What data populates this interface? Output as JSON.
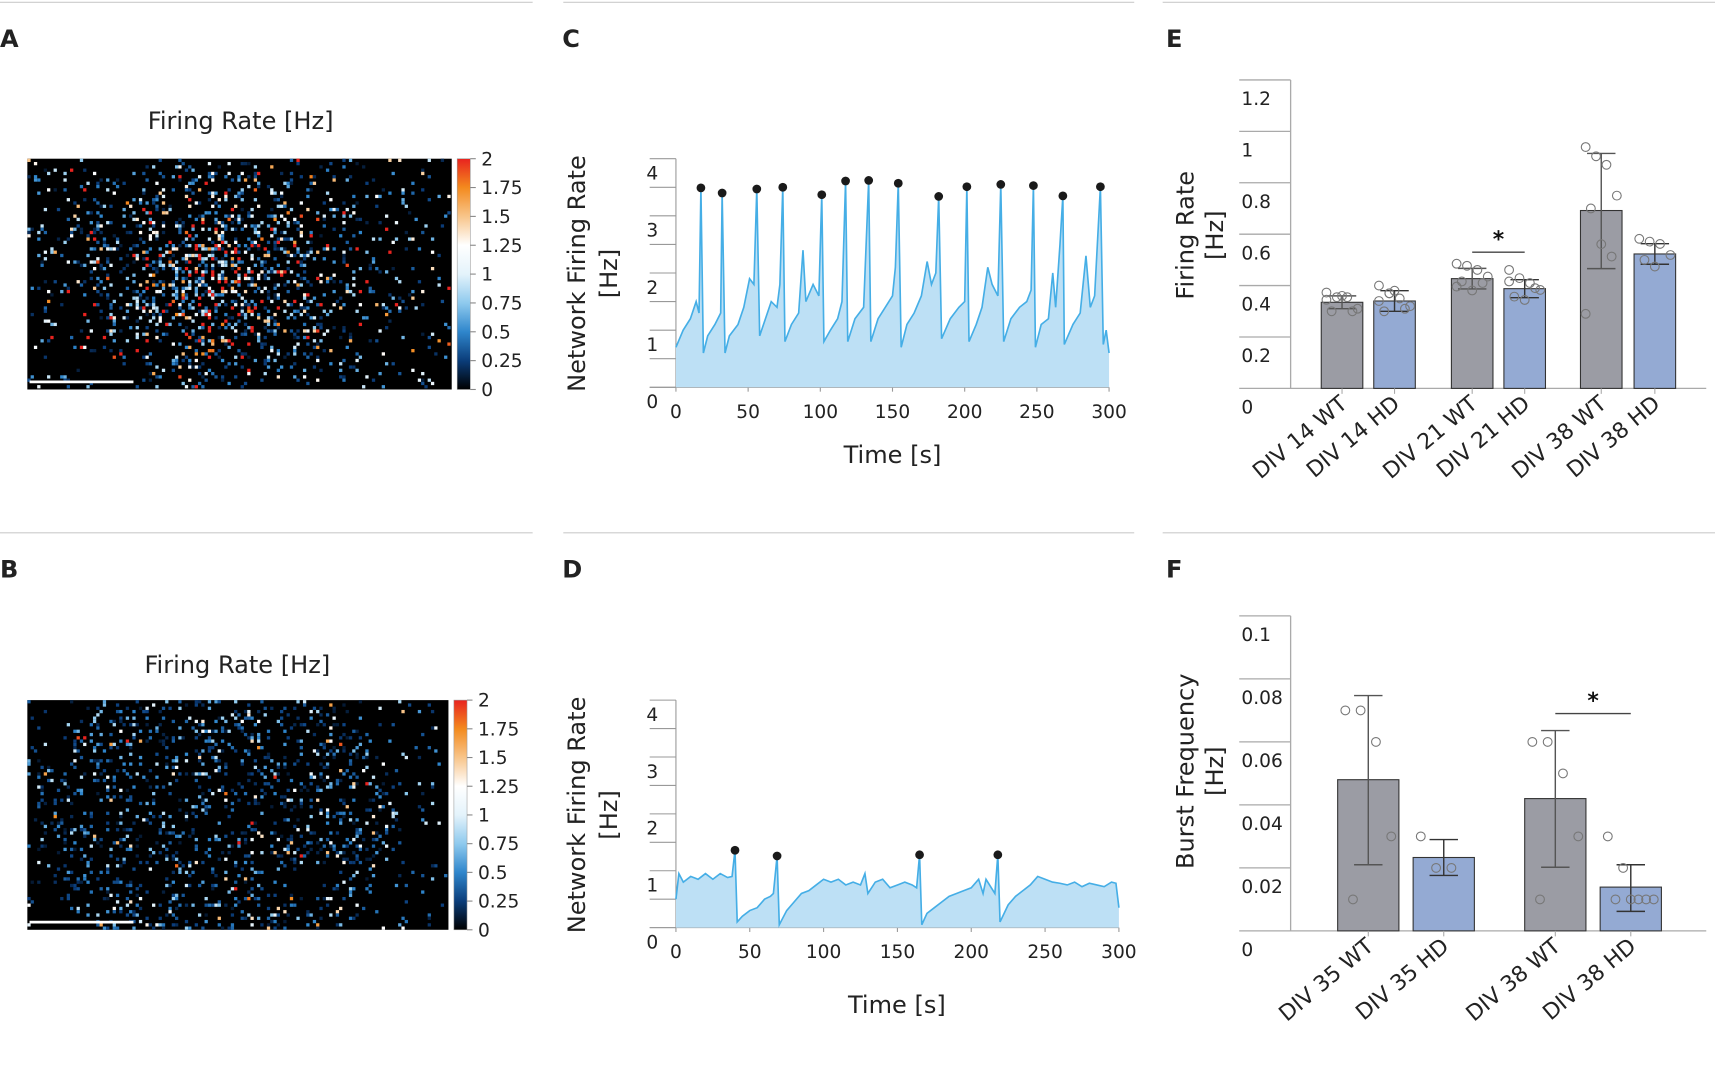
{
  "panel_labels": {
    "a": "A",
    "b": "B",
    "c": "C",
    "d": "D",
    "e": "E",
    "f": "F"
  },
  "colors": {
    "wt_bar": "#9b9ca4",
    "hd_bar": "#94aad3",
    "trace_line": "#45aee6",
    "trace_fill": "#bde0f5",
    "burst_marker": "#1a1a1a",
    "divider": "#cccccc"
  },
  "chart_data": [
    {
      "panel": "A",
      "type": "heatmap",
      "title": "Firing Rate [Hz]",
      "range": [
        0,
        2
      ],
      "colorbar_ticks": [
        "0",
        "0.25",
        "0.5",
        "0.75",
        "1",
        "1.25",
        "1.5",
        "1.75",
        "2"
      ],
      "colormap": [
        "#000000",
        "#0b3d7a",
        "#2f86cc",
        "#8fcaee",
        "#e4f3fb",
        "#ffffff",
        "#f8c58a",
        "#f38a1e",
        "#e8231f"
      ],
      "scale_bar": true
    },
    {
      "panel": "C",
      "type": "line",
      "xlabel": "Time [s]",
      "ylabel_lines": [
        "Network Firing Rate",
        "[Hz]"
      ],
      "xlim": [
        0,
        300
      ],
      "ylim": [
        0,
        4
      ],
      "xticks": [
        0,
        50,
        100,
        150,
        200,
        250,
        300
      ],
      "yticks": [
        0,
        1,
        2,
        3,
        4
      ],
      "minor_step": 0.5,
      "x": [
        0,
        5,
        10,
        14,
        16,
        17.3,
        19,
        22,
        27,
        31,
        32,
        34,
        37,
        43,
        47,
        51,
        54,
        56,
        58,
        62,
        66,
        70,
        72,
        74,
        75.5,
        80,
        85,
        88,
        90,
        95,
        99,
        101,
        102.5,
        107,
        112,
        115,
        117.5,
        119,
        124,
        130,
        133.5,
        135,
        140,
        145,
        150,
        152,
        154,
        156,
        160,
        165,
        170,
        174,
        177,
        180,
        182,
        184,
        190,
        196,
        200,
        201.5,
        203,
        208,
        212,
        216,
        219,
        223,
        225,
        227,
        232,
        238,
        243,
        246,
        247.6,
        249,
        253,
        258,
        261,
        263,
        266,
        268,
        269,
        275,
        280,
        284,
        287,
        290,
        294,
        296,
        298,
        300
      ],
      "y": [
        0.7,
        1.0,
        1.2,
        1.5,
        1.3,
        3.49,
        0.6,
        0.9,
        1.1,
        1.3,
        3.4,
        0.6,
        0.9,
        1.1,
        1.4,
        1.9,
        1.8,
        3.47,
        0.9,
        1.2,
        1.5,
        1.4,
        1.8,
        3.5,
        0.8,
        1.1,
        1.3,
        2.4,
        1.5,
        1.8,
        1.6,
        3.37,
        0.8,
        1.0,
        1.2,
        1.5,
        3.61,
        0.8,
        1.2,
        1.4,
        3.62,
        0.8,
        1.2,
        1.4,
        1.6,
        2.1,
        3.57,
        0.7,
        1.1,
        1.3,
        1.6,
        2.2,
        1.8,
        2.0,
        3.34,
        0.85,
        1.2,
        1.4,
        1.5,
        3.51,
        0.8,
        1.1,
        1.4,
        2.1,
        1.8,
        1.6,
        3.55,
        0.8,
        1.2,
        1.4,
        1.5,
        1.7,
        3.53,
        0.7,
        1.1,
        1.2,
        2.0,
        1.4,
        2.5,
        3.35,
        0.75,
        1.1,
        1.3,
        2.3,
        1.4,
        1.6,
        3.51,
        0.75,
        1.0,
        0.6
      ],
      "bursts": {
        "x": [
          17.3,
          32,
          56,
          74,
          101,
          117.5,
          133.5,
          154,
          182,
          201.5,
          225,
          247.6,
          268,
          294
        ],
        "y": [
          3.49,
          3.4,
          3.47,
          3.5,
          3.37,
          3.61,
          3.62,
          3.57,
          3.34,
          3.51,
          3.55,
          3.53,
          3.35,
          3.51
        ]
      }
    },
    {
      "panel": "E",
      "type": "bar",
      "ylabel_lines": [
        "Firing Rate",
        "[Hz]"
      ],
      "ylim": [
        0,
        1.2
      ],
      "yticks": [
        "0",
        "0.2",
        "0.4",
        "0.6",
        "0.8",
        "1",
        "1.2"
      ],
      "ytick_values": [
        0,
        0.2,
        0.4,
        0.6,
        0.8,
        1.0,
        1.2
      ],
      "categories": [
        "DIV 14 WT",
        "DIV 14 HD",
        "DIV 21 WT",
        "DIV 21 HD",
        "DIV 38 WT",
        "DIV 38 HD"
      ],
      "genotype": [
        "WT",
        "HD",
        "WT",
        "HD",
        "WT",
        "HD"
      ],
      "values": [
        0.335,
        0.34,
        0.427,
        0.388,
        0.692,
        0.523
      ],
      "errors": [
        [
          0.31,
          0.36
        ],
        [
          0.3,
          0.38
        ],
        [
          0.387,
          0.467
        ],
        [
          0.353,
          0.423
        ],
        [
          0.466,
          0.914
        ],
        [
          0.483,
          0.563
        ]
      ],
      "points": [
        [
          0.373,
          0.355,
          0.355,
          0.31,
          0.3,
          0.36,
          0.3,
          0.345
        ],
        [
          0.4,
          0.37,
          0.35,
          0.32,
          0.3,
          0.38,
          0.31,
          0.34,
          0.37
        ],
        [
          0.485,
          0.477,
          0.461,
          0.435,
          0.416,
          0.381,
          0.41,
          0.396
        ],
        [
          0.461,
          0.429,
          0.41,
          0.383,
          0.357,
          0.344,
          0.39,
          0.416
        ],
        [
          0.939,
          0.903,
          0.87,
          0.75,
          0.7,
          0.561,
          0.513,
          0.29
        ],
        [
          0.582,
          0.571,
          0.562,
          0.519,
          0.5,
          0.474
        ]
      ],
      "significance": [
        {
          "between": [
            2,
            3
          ],
          "label": "*",
          "level": 0.53
        }
      ]
    },
    {
      "panel": "B",
      "type": "heatmap",
      "title": "Firing Rate [Hz]",
      "range": [
        0,
        2
      ],
      "colorbar_ticks": [
        "0",
        "0.25",
        "0.5",
        "0.75",
        "1",
        "1.25",
        "1.5",
        "1.75",
        "2"
      ],
      "colormap": [
        "#000000",
        "#0b3d7a",
        "#2f86cc",
        "#8fcaee",
        "#e4f3fb",
        "#ffffff",
        "#f8c58a",
        "#f38a1e",
        "#e8231f"
      ],
      "scale_bar": true
    },
    {
      "panel": "D",
      "type": "line",
      "xlabel": "Time [s]",
      "ylabel_lines": [
        "Network Firing Rate",
        "[Hz]"
      ],
      "xlim": [
        0,
        300
      ],
      "ylim": [
        0,
        4
      ],
      "xticks": [
        0,
        50,
        100,
        150,
        200,
        250,
        300
      ],
      "yticks": [
        0,
        1,
        2,
        3,
        4
      ],
      "minor_step": 0.5,
      "x": [
        0,
        2,
        5,
        10,
        15,
        20,
        25,
        30,
        35,
        38,
        40,
        41.5,
        45,
        50,
        55,
        60,
        64,
        66,
        68.5,
        70,
        75,
        80,
        85,
        90,
        95,
        100,
        105,
        110,
        115,
        120,
        125,
        128,
        130,
        135,
        140,
        145,
        150,
        155,
        160,
        163,
        165,
        166.5,
        170,
        175,
        180,
        185,
        190,
        195,
        200,
        205,
        208,
        210,
        216,
        218,
        219.5,
        225,
        230,
        235,
        240,
        245,
        250,
        255,
        260,
        265,
        270,
        275,
        280,
        285,
        290,
        295,
        298,
        300
      ],
      "y": [
        0.5,
        0.95,
        0.8,
        0.9,
        0.85,
        0.95,
        0.85,
        0.95,
        0.88,
        0.9,
        1.36,
        0.1,
        0.2,
        0.3,
        0.35,
        0.5,
        0.55,
        0.6,
        1.26,
        0.05,
        0.3,
        0.45,
        0.6,
        0.65,
        0.75,
        0.85,
        0.8,
        0.85,
        0.75,
        0.8,
        0.75,
        0.95,
        0.6,
        0.8,
        0.85,
        0.7,
        0.75,
        0.8,
        0.75,
        0.7,
        1.28,
        0.05,
        0.25,
        0.35,
        0.45,
        0.55,
        0.6,
        0.65,
        0.7,
        0.85,
        0.6,
        0.85,
        0.6,
        1.28,
        0.1,
        0.4,
        0.55,
        0.65,
        0.75,
        0.9,
        0.85,
        0.8,
        0.78,
        0.75,
        0.8,
        0.72,
        0.78,
        0.75,
        0.72,
        0.8,
        0.78,
        0.35
      ],
      "bursts": {
        "x": [
          40,
          68.5,
          165,
          218
        ],
        "y": [
          1.36,
          1.26,
          1.28,
          1.28
        ]
      }
    },
    {
      "panel": "F",
      "type": "bar",
      "ylabel_lines": [
        "Burst Frequency",
        "[Hz]"
      ],
      "ylim": [
        0,
        0.1
      ],
      "yticks": [
        "0",
        "0.02",
        "0.04",
        "0.06",
        "0.08",
        "0.1"
      ],
      "ytick_values": [
        0,
        0.02,
        0.04,
        0.06,
        0.08,
        0.1
      ],
      "categories": [
        "DIV 35 WT",
        "DIV 35 HD",
        "DIV 38 WT",
        "DIV 38 HD"
      ],
      "genotype": [
        "WT",
        "HD",
        "WT",
        "HD"
      ],
      "values": [
        0.048,
        0.0233,
        0.042,
        0.0139
      ],
      "errors": [
        [
          0.021,
          0.0747
        ],
        [
          0.0176,
          0.029
        ],
        [
          0.0202,
          0.0636
        ],
        [
          0.0062,
          0.021
        ]
      ],
      "points": [
        [
          0.07,
          0.07,
          0.06,
          0.03,
          0.01
        ],
        [
          0.03,
          0.02,
          0.02
        ],
        [
          0.06,
          0.06,
          0.05,
          0.03,
          0.01
        ],
        [
          0.03,
          0.02,
          0.01,
          0.01,
          0.01,
          0.01,
          0.01
        ]
      ],
      "significance": [
        {
          "between": [
            2,
            3
          ],
          "label": "*",
          "level": 0.069
        }
      ]
    }
  ]
}
